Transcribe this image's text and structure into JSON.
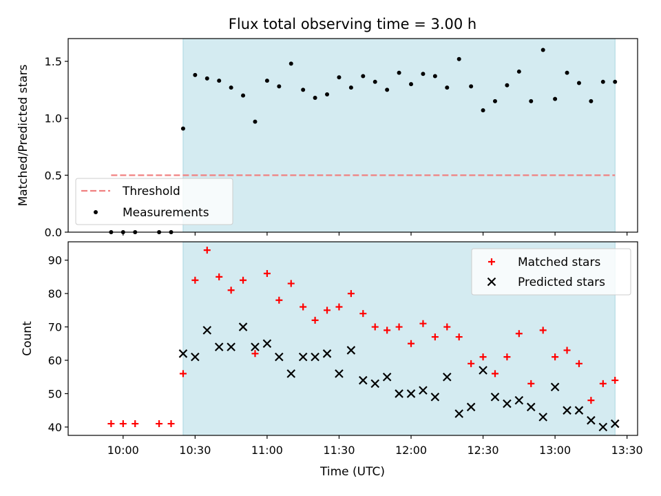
{
  "chart_data": {
    "type": "scatter",
    "title": "Flux total observing time = 3.00 h",
    "xlabel": "Time (UTC)",
    "x_ticks": [
      "10:00",
      "10:30",
      "11:00",
      "11:30",
      "12:00",
      "12:30",
      "13:00",
      "13:30"
    ],
    "shaded_interval": [
      "10:25",
      "13:25"
    ],
    "colors": {
      "shade": "#d4ebf1",
      "threshold": "#f08080",
      "measurement": "#000000",
      "matched": "#ff0000",
      "predicted": "#000000"
    },
    "panels": [
      {
        "ylabel": "Matched/Predicted stars",
        "ylim": [
          0,
          1.7
        ],
        "yticks": [
          "0.0",
          "0.5",
          "1.0",
          "1.5"
        ],
        "legend": "lower-left",
        "threshold": {
          "name": "Threshold",
          "value": 0.5,
          "x_range": [
            "09:55",
            "13:25"
          ]
        },
        "series": [
          {
            "name": "Measurements",
            "marker": "dot",
            "x": [
              "09:55",
              "10:00",
              "10:05",
              "10:15",
              "10:20",
              "10:25",
              "10:30",
              "10:35",
              "10:40",
              "10:45",
              "10:50",
              "10:55",
              "11:00",
              "11:05",
              "11:10",
              "11:15",
              "11:20",
              "11:25",
              "11:30",
              "11:35",
              "11:40",
              "11:45",
              "11:50",
              "11:55",
              "12:00",
              "12:05",
              "12:10",
              "12:15",
              "12:20",
              "12:25",
              "12:30",
              "12:35",
              "12:40",
              "12:45",
              "12:50",
              "12:55",
              "13:00",
              "13:05",
              "13:10",
              "13:15",
              "13:20",
              "13:25"
            ],
            "y": [
              0,
              0,
              0,
              0,
              0,
              0.91,
              1.38,
              1.35,
              1.33,
              1.27,
              1.2,
              0.97,
              1.33,
              1.28,
              1.48,
              1.25,
              1.18,
              1.21,
              1.36,
              1.27,
              1.37,
              1.32,
              1.25,
              1.4,
              1.3,
              1.39,
              1.37,
              1.27,
              1.52,
              1.28,
              1.07,
              1.15,
              1.29,
              1.41,
              1.15,
              1.6,
              1.17,
              1.4,
              1.31,
              1.15,
              1.32,
              1.32
            ]
          }
        ]
      },
      {
        "ylabel": "Count",
        "ylim": [
          37.5,
          95.5
        ],
        "yticks": [
          "40",
          "50",
          "60",
          "70",
          "80",
          "90"
        ],
        "legend": "top-right",
        "series": [
          {
            "name": "Matched stars",
            "marker": "plus",
            "x": [
              "09:55",
              "10:00",
              "10:05",
              "10:15",
              "10:20",
              "10:25",
              "10:30",
              "10:35",
              "10:40",
              "10:45",
              "10:50",
              "10:55",
              "11:00",
              "11:05",
              "11:10",
              "11:15",
              "11:20",
              "11:25",
              "11:30",
              "11:35",
              "11:40",
              "11:45",
              "11:50",
              "11:55",
              "12:00",
              "12:05",
              "12:10",
              "12:15",
              "12:20",
              "12:25",
              "12:30",
              "12:35",
              "12:40",
              "12:45",
              "12:50",
              "12:55",
              "13:00",
              "13:05",
              "13:10",
              "13:15",
              "13:20",
              "13:25"
            ],
            "y": [
              41,
              41,
              41,
              41,
              41,
              56,
              84,
              93,
              85,
              81,
              84,
              62,
              86,
              78,
              83,
              76,
              72,
              75,
              76,
              80,
              74,
              70,
              69,
              70,
              65,
              71,
              67,
              70,
              67,
              59,
              61,
              56,
              61,
              68,
              53,
              69,
              61,
              63,
              59,
              48,
              53,
              54
            ]
          },
          {
            "name": "Predicted stars",
            "marker": "x",
            "x": [
              "10:25",
              "10:30",
              "10:35",
              "10:40",
              "10:45",
              "10:50",
              "10:55",
              "11:00",
              "11:05",
              "11:10",
              "11:15",
              "11:20",
              "11:25",
              "11:30",
              "11:35",
              "11:40",
              "11:45",
              "11:50",
              "11:55",
              "12:00",
              "12:05",
              "12:10",
              "12:15",
              "12:20",
              "12:25",
              "12:30",
              "12:35",
              "12:40",
              "12:45",
              "12:50",
              "12:55",
              "13:00",
              "13:05",
              "13:10",
              "13:15",
              "13:20",
              "13:25"
            ],
            "y": [
              62,
              61,
              69,
              64,
              64,
              70,
              64,
              65,
              61,
              56,
              61,
              61,
              62,
              56,
              63,
              54,
              53,
              55,
              50,
              50,
              51,
              49,
              55,
              44,
              46,
              57,
              49,
              47,
              48,
              46,
              43,
              52,
              45,
              45,
              42,
              40,
              41
            ]
          }
        ]
      }
    ]
  }
}
